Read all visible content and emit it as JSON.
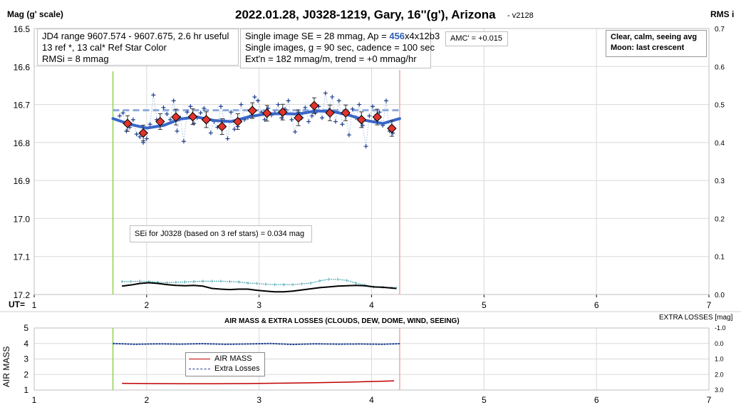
{
  "main": {
    "title": "2022.01.28, J0328-1219, Gary, 16''(g'), Arizona",
    "version": "- v2128",
    "y_label": "Mag (g' scale)",
    "y2_label": "RMS i",
    "x_prefix": "UT=",
    "info_box_1": {
      "line1": "JD4 range 9607.574 - 9607.675, 2.6 hr useful",
      "line2": "13 ref *, 13 cal*  Ref Star Color",
      "line3": "RMSi = 8 mmag"
    },
    "info_box_2": {
      "line1_prefix": "Single image SE = 28 mmag, Ap = ",
      "line1_ap": "456",
      "line1_suffix": "x4x12b3",
      "line2": "Single images, g = 90 sec, cadence = 100 sec",
      "line3": "Ext'n = 182 mmag/m, trend = +0 mmag/hr"
    },
    "amc_box": "AMC' = +0.015",
    "conditions_box": {
      "line1": "Clear, calm, seeing avg",
      "line2": "Moon: last crescent"
    },
    "sei_box": "SEi for J0328 (based on 3 ref stars) = 0.034 mag"
  },
  "lower": {
    "title": "AIR MASS & EXTRA LOSSES (CLOUDS, DEW, DOME, WIND, SEEING)",
    "y_label": "AIR MASS",
    "y2_label": "EXTRA LOSSES [mag]",
    "legend": [
      "AIR MASS",
      "Extra Losses"
    ]
  },
  "colors": {
    "single": "#1f3f8f",
    "binned_fill": "#e0342c",
    "trend": "#3a66c8",
    "reference": "#8eaadb",
    "rms_teal": "#4aa7b0",
    "rms_black": "#000000",
    "airmass": "#c00000",
    "extra_losses": "#1f3f8f",
    "start_line": "#92d050",
    "end_line": "#f4a6a6",
    "grid": "#d9d9d9"
  },
  "chart_data": [
    {
      "type": "scatter",
      "title": "2022.01.28, J0328-1219, Gary, 16''(g'), Arizona",
      "ylabel": "Mag (g' scale)",
      "y2label": "RMS i",
      "ylim": [
        16.5,
        17.2
      ],
      "y_inverted": true,
      "y2lim": [
        0.0,
        0.7
      ],
      "xlim": [
        1,
        7
      ],
      "x_ticks": [
        1,
        2,
        3,
        4,
        5,
        6,
        7
      ],
      "y_ticks": [
        16.5,
        16.6,
        16.7,
        16.8,
        16.9,
        17.0,
        17.1,
        17.2
      ],
      "y2_ticks": [
        0.0,
        0.1,
        0.2,
        0.3,
        0.4,
        0.5,
        0.6,
        0.7
      ],
      "grid": true,
      "start_ut": 1.7,
      "end_ut": 4.25,
      "reference_mag": 16.715,
      "binned": {
        "x": [
          1.83,
          1.97,
          2.12,
          2.26,
          2.41,
          2.53,
          2.67,
          2.81,
          2.94,
          3.07,
          3.21,
          3.35,
          3.49,
          3.63,
          3.77,
          3.91,
          4.05,
          4.18
        ],
        "y": [
          16.75,
          16.775,
          16.745,
          16.733,
          16.732,
          16.74,
          16.758,
          16.745,
          16.716,
          16.723,
          16.72,
          16.735,
          16.703,
          16.722,
          16.722,
          16.74,
          16.733,
          16.763
        ]
      },
      "trend": {
        "x": [
          1.7,
          1.85,
          2.0,
          2.15,
          2.3,
          2.45,
          2.6,
          2.75,
          2.9,
          3.05,
          3.2,
          3.35,
          3.5,
          3.65,
          3.8,
          3.95,
          4.1,
          4.25
        ],
        "y": [
          16.737,
          16.752,
          16.762,
          16.755,
          16.738,
          16.733,
          16.742,
          16.745,
          16.733,
          16.725,
          16.724,
          16.725,
          16.717,
          16.718,
          16.728,
          16.742,
          16.75,
          16.737
        ]
      },
      "singles": {
        "x": [
          1.76,
          1.79,
          1.82,
          1.85,
          1.88,
          1.91,
          1.94,
          1.97,
          2.0,
          2.03,
          2.06,
          2.09,
          2.12,
          2.15,
          2.18,
          2.21,
          2.24,
          2.27,
          2.3,
          2.33,
          2.36,
          2.39,
          2.42,
          2.45,
          2.48,
          2.51,
          2.54,
          2.57,
          2.6,
          2.63,
          2.66,
          2.69,
          2.72,
          2.75,
          2.78,
          2.81,
          2.84,
          2.87,
          2.9,
          2.93,
          2.96,
          2.99,
          3.02,
          3.05,
          3.08,
          3.11,
          3.14,
          3.17,
          3.2,
          3.23,
          3.26,
          3.29,
          3.32,
          3.35,
          3.38,
          3.41,
          3.44,
          3.47,
          3.5,
          3.53,
          3.56,
          3.59,
          3.62,
          3.65,
          3.68,
          3.71,
          3.74,
          3.77,
          3.8,
          3.83,
          3.86,
          3.89,
          3.92,
          3.95,
          3.98,
          4.01,
          4.04,
          4.07,
          4.1,
          4.13,
          4.16,
          4.19
        ],
        "y": [
          16.73,
          16.722,
          16.77,
          16.76,
          16.74,
          16.778,
          16.785,
          16.8,
          16.79,
          16.752,
          16.675,
          16.74,
          16.755,
          16.708,
          16.725,
          16.74,
          16.69,
          16.77,
          16.735,
          16.797,
          16.72,
          16.705,
          16.75,
          16.735,
          16.722,
          16.71,
          16.74,
          16.775,
          16.745,
          16.76,
          16.705,
          16.742,
          16.79,
          16.72,
          16.765,
          16.758,
          16.7,
          16.74,
          16.735,
          16.728,
          16.68,
          16.69,
          16.72,
          16.74,
          16.71,
          16.728,
          16.722,
          16.7,
          16.735,
          16.712,
          16.69,
          16.74,
          16.772,
          16.72,
          16.735,
          16.708,
          16.745,
          16.73,
          16.722,
          16.705,
          16.735,
          16.67,
          16.715,
          16.68,
          16.745,
          16.69,
          16.752,
          16.728,
          16.78,
          16.712,
          16.735,
          16.7,
          16.755,
          16.81,
          16.73,
          16.705,
          16.74,
          16.72,
          16.755,
          16.69,
          16.77,
          16.775
        ]
      },
      "rms_teal": {
        "x": [
          1.78,
          1.86,
          1.94,
          2.02,
          2.1,
          2.18,
          2.26,
          2.34,
          2.42,
          2.5,
          2.58,
          2.66,
          2.74,
          2.82,
          2.9,
          2.98,
          3.06,
          3.14,
          3.22,
          3.3,
          3.38,
          3.46,
          3.54,
          3.62,
          3.7,
          3.78,
          3.86,
          3.94,
          4.02,
          4.1,
          4.18,
          4.22
        ],
        "y": [
          0.034,
          0.034,
          0.035,
          0.034,
          0.032,
          0.031,
          0.032,
          0.033,
          0.034,
          0.035,
          0.035,
          0.035,
          0.034,
          0.033,
          0.03,
          0.029,
          0.027,
          0.026,
          0.026,
          0.026,
          0.028,
          0.03,
          0.036,
          0.04,
          0.04,
          0.037,
          0.03,
          0.025,
          0.02,
          0.019,
          0.018,
          0.017
        ]
      },
      "rms_black": {
        "x": [
          1.78,
          1.86,
          1.94,
          2.02,
          2.1,
          2.18,
          2.26,
          2.34,
          2.42,
          2.5,
          2.58,
          2.66,
          2.74,
          2.82,
          2.9,
          2.98,
          3.06,
          3.14,
          3.22,
          3.3,
          3.38,
          3.46,
          3.54,
          3.62,
          3.7,
          3.78,
          3.86,
          3.94,
          4.02,
          4.1,
          4.18,
          4.22
        ],
        "y": [
          0.022,
          0.025,
          0.029,
          0.031,
          0.029,
          0.026,
          0.024,
          0.023,
          0.024,
          0.022,
          0.016,
          0.014,
          0.013,
          0.014,
          0.014,
          0.011,
          0.009,
          0.007,
          0.007,
          0.009,
          0.012,
          0.015,
          0.018,
          0.02,
          0.022,
          0.023,
          0.024,
          0.023,
          0.02,
          0.019,
          0.017,
          0.016
        ]
      }
    },
    {
      "type": "line",
      "title": "AIR MASS & EXTRA LOSSES (CLOUDS, DEW, DOME, WIND, SEEING)",
      "ylabel": "AIR MASS",
      "y2label": "EXTRA LOSSES [mag]",
      "ylim": [
        1,
        5
      ],
      "y2lim": [
        -1.0,
        3.0
      ],
      "y2_inverted": true,
      "xlim": [
        1,
        7
      ],
      "x_ticks": [
        1,
        2,
        3,
        4,
        5,
        6,
        7
      ],
      "y_ticks": [
        1,
        2,
        3,
        4,
        5
      ],
      "y2_ticks": [
        -1.0,
        0.0,
        1.0,
        2.0,
        3.0
      ],
      "grid": true,
      "series": [
        {
          "name": "AIR MASS",
          "x": [
            1.78,
            2.0,
            2.3,
            2.6,
            2.9,
            3.2,
            3.5,
            3.8,
            4.1,
            4.2
          ],
          "y": [
            1.43,
            1.42,
            1.41,
            1.41,
            1.42,
            1.44,
            1.47,
            1.51,
            1.57,
            1.59
          ]
        },
        {
          "name": "Extra Losses",
          "x": [
            1.7,
            1.9,
            2.1,
            2.3,
            2.5,
            2.7,
            2.9,
            3.1,
            3.3,
            3.5,
            3.7,
            3.9,
            4.1,
            4.25
          ],
          "y": [
            0.0,
            0.05,
            0.02,
            0.04,
            0.01,
            0.05,
            0.03,
            0.0,
            0.06,
            0.02,
            0.04,
            0.03,
            0.05,
            0.01
          ]
        }
      ]
    }
  ]
}
